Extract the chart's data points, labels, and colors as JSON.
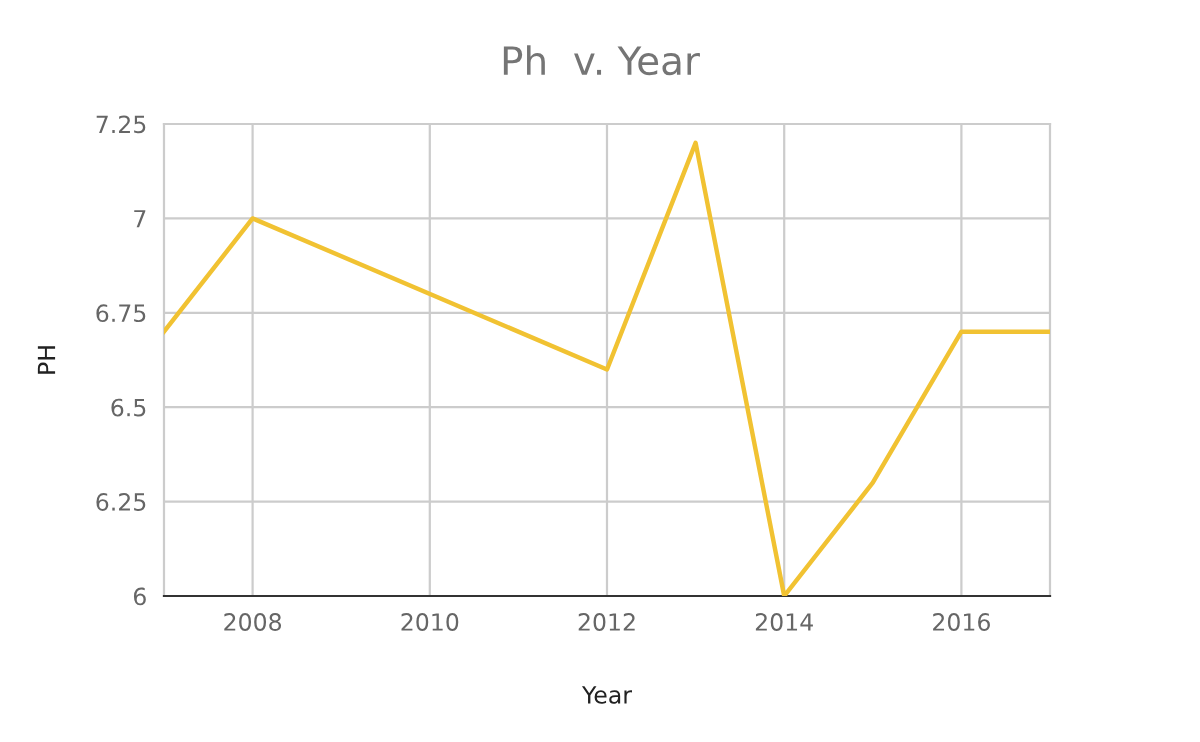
{
  "chart_data": {
    "type": "line",
    "title": "Ph  v. Year",
    "xlabel": "Year",
    "ylabel": "PH",
    "x": [
      2007,
      2008,
      2012,
      2013,
      2014,
      2015,
      2016,
      2017
    ],
    "series": [
      {
        "color": "#f1c232",
        "values": [
          6.7,
          7.0,
          6.6,
          7.2,
          6.0,
          6.3,
          6.7,
          6.7
        ]
      }
    ],
    "xlim": [
      2007,
      2017
    ],
    "xticks": [
      2008,
      2010,
      2012,
      2014,
      2016
    ],
    "ylim": [
      6,
      7.25
    ],
    "yticks": [
      6,
      6.25,
      6.5,
      6.75,
      7,
      7.25
    ],
    "grid": true,
    "marker": "none",
    "line_style": "solid"
  }
}
